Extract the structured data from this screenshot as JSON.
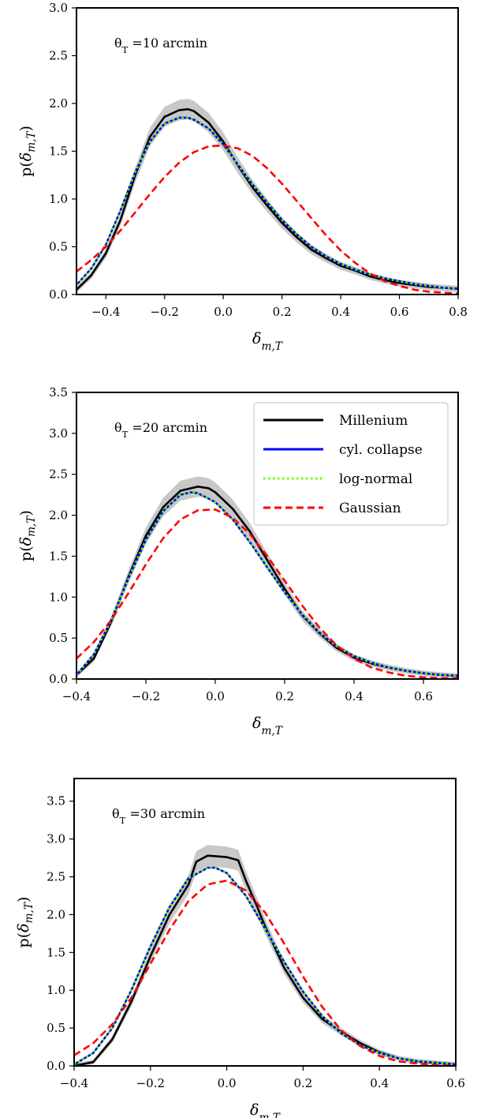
{
  "chart_data": [
    {
      "type": "line",
      "annotation": "θ_T =10 arcmin",
      "xlabel": "δ_m,T",
      "ylabel": "p(δ_m,T)",
      "xlim": [
        -0.5,
        0.8
      ],
      "ylim": [
        0,
        3.0
      ],
      "xticks": [
        -0.4,
        -0.2,
        0.0,
        0.2,
        0.4,
        0.6,
        0.8
      ],
      "xtick_labels": [
        "−0.4",
        "−0.2",
        "0.0",
        "0.2",
        "0.4",
        "0.6",
        "0.8"
      ],
      "yticks": [
        0.0,
        0.5,
        1.0,
        1.5,
        2.0,
        2.5,
        3.0
      ],
      "ytick_labels": [
        "0.0",
        "0.5",
        "1.0",
        "1.5",
        "2.0",
        "2.5",
        "3.0"
      ],
      "legend": false,
      "series": [
        {
          "name": "Millenium",
          "color": "#000000",
          "style": "solid",
          "x": [
            -0.5,
            -0.45,
            -0.4,
            -0.35,
            -0.3,
            -0.25,
            -0.2,
            -0.15,
            -0.12,
            -0.1,
            -0.05,
            0.0,
            0.05,
            0.1,
            0.15,
            0.2,
            0.25,
            0.3,
            0.35,
            0.4,
            0.45,
            0.5,
            0.55,
            0.6,
            0.65,
            0.7,
            0.75,
            0.8
          ],
          "y": [
            0.05,
            0.2,
            0.43,
            0.78,
            1.25,
            1.65,
            1.86,
            1.93,
            1.94,
            1.92,
            1.8,
            1.6,
            1.35,
            1.12,
            0.93,
            0.75,
            0.6,
            0.47,
            0.38,
            0.3,
            0.25,
            0.19,
            0.15,
            0.12,
            0.1,
            0.08,
            0.07,
            0.06
          ]
        },
        {
          "name": "cyl. collapse",
          "color": "#0000ff",
          "style": "solid",
          "x": [
            -0.5,
            -0.45,
            -0.4,
            -0.35,
            -0.3,
            -0.25,
            -0.2,
            -0.15,
            -0.12,
            -0.1,
            -0.05,
            0.0,
            0.05,
            0.1,
            0.15,
            0.2,
            0.25,
            0.3,
            0.35,
            0.4,
            0.45,
            0.5,
            0.55,
            0.6,
            0.65,
            0.7,
            0.75,
            0.8
          ],
          "y": [
            0.1,
            0.27,
            0.52,
            0.88,
            1.28,
            1.6,
            1.79,
            1.85,
            1.85,
            1.83,
            1.74,
            1.57,
            1.36,
            1.15,
            0.96,
            0.78,
            0.63,
            0.5,
            0.4,
            0.32,
            0.26,
            0.21,
            0.17,
            0.14,
            0.11,
            0.09,
            0.07,
            0.06
          ]
        },
        {
          "name": "log-normal",
          "color": "#66ff00",
          "style": "dotted",
          "x": [
            -0.5,
            -0.45,
            -0.4,
            -0.35,
            -0.3,
            -0.25,
            -0.2,
            -0.15,
            -0.12,
            -0.1,
            -0.05,
            0.0,
            0.05,
            0.1,
            0.15,
            0.2,
            0.25,
            0.3,
            0.35,
            0.4,
            0.45,
            0.5,
            0.55,
            0.6,
            0.65,
            0.7,
            0.75,
            0.8
          ],
          "y": [
            0.1,
            0.27,
            0.52,
            0.88,
            1.28,
            1.6,
            1.79,
            1.85,
            1.85,
            1.83,
            1.74,
            1.57,
            1.36,
            1.15,
            0.96,
            0.78,
            0.63,
            0.5,
            0.4,
            0.32,
            0.26,
            0.21,
            0.17,
            0.14,
            0.11,
            0.09,
            0.07,
            0.06
          ]
        },
        {
          "name": "Gaussian",
          "color": "#ff0000",
          "style": "dashed",
          "x": [
            -0.5,
            -0.45,
            -0.4,
            -0.35,
            -0.3,
            -0.25,
            -0.2,
            -0.15,
            -0.1,
            -0.05,
            0.0,
            0.05,
            0.1,
            0.15,
            0.2,
            0.25,
            0.3,
            0.35,
            0.4,
            0.45,
            0.5,
            0.55,
            0.6,
            0.65,
            0.7,
            0.75,
            0.8
          ],
          "y": [
            0.24,
            0.36,
            0.5,
            0.67,
            0.86,
            1.05,
            1.23,
            1.38,
            1.49,
            1.55,
            1.56,
            1.53,
            1.45,
            1.32,
            1.16,
            0.98,
            0.8,
            0.62,
            0.46,
            0.33,
            0.22,
            0.14,
            0.09,
            0.05,
            0.03,
            0.02,
            0.01
          ]
        }
      ]
    },
    {
      "type": "line",
      "annotation": "θ_T =20 arcmin",
      "xlabel": "δ_m,T",
      "ylabel": "p(δ_m,T)",
      "xlim": [
        -0.4,
        0.7
      ],
      "ylim": [
        0,
        3.5
      ],
      "xticks": [
        -0.4,
        -0.2,
        0.0,
        0.2,
        0.4,
        0.6
      ],
      "xtick_labels": [
        "−0.4",
        "−0.2",
        "0.0",
        "0.2",
        "0.4",
        "0.6"
      ],
      "yticks": [
        0.0,
        0.5,
        1.0,
        1.5,
        2.0,
        2.5,
        3.0,
        3.5
      ],
      "ytick_labels": [
        "0.0",
        "0.5",
        "1.0",
        "1.5",
        "2.0",
        "2.5",
        "3.0",
        "3.5"
      ],
      "legend": true,
      "legend_position": "top-right",
      "legend_entries": [
        "Millenium",
        "cyl. collapse",
        "log-normal",
        "Gaussian"
      ],
      "series": [
        {
          "name": "Millenium",
          "color": "#000000",
          "style": "solid",
          "x": [
            -0.4,
            -0.35,
            -0.3,
            -0.25,
            -0.2,
            -0.15,
            -0.1,
            -0.05,
            -0.02,
            0.0,
            0.05,
            0.1,
            0.15,
            0.2,
            0.25,
            0.3,
            0.35,
            0.4,
            0.45,
            0.5,
            0.55,
            0.6,
            0.65,
            0.7
          ],
          "y": [
            0.05,
            0.25,
            0.7,
            1.25,
            1.75,
            2.1,
            2.3,
            2.35,
            2.33,
            2.28,
            2.08,
            1.8,
            1.45,
            1.1,
            0.78,
            0.56,
            0.38,
            0.26,
            0.19,
            0.14,
            0.1,
            0.07,
            0.05,
            0.04
          ]
        },
        {
          "name": "cyl. collapse",
          "color": "#0000ff",
          "style": "solid",
          "x": [
            -0.4,
            -0.35,
            -0.3,
            -0.25,
            -0.2,
            -0.15,
            -0.1,
            -0.07,
            -0.05,
            0.0,
            0.05,
            0.1,
            0.15,
            0.2,
            0.25,
            0.3,
            0.35,
            0.4,
            0.45,
            0.5,
            0.55,
            0.6,
            0.65,
            0.7
          ],
          "y": [
            0.05,
            0.3,
            0.72,
            1.23,
            1.7,
            2.05,
            2.25,
            2.28,
            2.27,
            2.16,
            1.95,
            1.67,
            1.36,
            1.06,
            0.79,
            0.57,
            0.4,
            0.28,
            0.2,
            0.14,
            0.1,
            0.07,
            0.05,
            0.04
          ]
        },
        {
          "name": "log-normal",
          "color": "#66ff00",
          "style": "dotted",
          "x": [
            -0.4,
            -0.35,
            -0.3,
            -0.25,
            -0.2,
            -0.15,
            -0.1,
            -0.07,
            -0.05,
            0.0,
            0.05,
            0.1,
            0.15,
            0.2,
            0.25,
            0.3,
            0.35,
            0.4,
            0.45,
            0.5,
            0.55,
            0.6,
            0.65,
            0.7
          ],
          "y": [
            0.05,
            0.3,
            0.72,
            1.23,
            1.7,
            2.05,
            2.25,
            2.28,
            2.27,
            2.16,
            1.95,
            1.67,
            1.36,
            1.06,
            0.79,
            0.57,
            0.4,
            0.28,
            0.2,
            0.14,
            0.1,
            0.07,
            0.05,
            0.04
          ]
        },
        {
          "name": "Gaussian",
          "color": "#ff0000",
          "style": "dashed",
          "x": [
            -0.4,
            -0.35,
            -0.3,
            -0.25,
            -0.2,
            -0.15,
            -0.1,
            -0.05,
            0.0,
            0.05,
            0.1,
            0.15,
            0.2,
            0.25,
            0.3,
            0.35,
            0.4,
            0.45,
            0.5,
            0.55,
            0.6,
            0.65,
            0.7
          ],
          "y": [
            0.25,
            0.45,
            0.72,
            1.05,
            1.4,
            1.72,
            1.95,
            2.06,
            2.07,
            1.97,
            1.77,
            1.5,
            1.2,
            0.9,
            0.63,
            0.41,
            0.25,
            0.14,
            0.08,
            0.04,
            0.02,
            0.01,
            0.01
          ]
        }
      ]
    },
    {
      "type": "line",
      "annotation": "θ_T =30 arcmin",
      "xlabel": "δ_m,T",
      "ylabel": "p(δ_m,T)",
      "xlim": [
        -0.4,
        0.6
      ],
      "ylim": [
        0,
        3.8
      ],
      "xticks": [
        -0.4,
        -0.2,
        0.0,
        0.2,
        0.4,
        0.6
      ],
      "xtick_labels": [
        "−0.4",
        "−0.2",
        "0.0",
        "0.2",
        "0.4",
        "0.6"
      ],
      "yticks": [
        0.0,
        0.5,
        1.0,
        1.5,
        2.0,
        2.5,
        3.0,
        3.5
      ],
      "ytick_labels": [
        "0.0",
        "0.5",
        "1.0",
        "1.5",
        "2.0",
        "2.5",
        "3.0",
        "3.5"
      ],
      "legend": false,
      "series": [
        {
          "name": "Millenium",
          "color": "#000000",
          "style": "solid",
          "x": [
            -0.4,
            -0.35,
            -0.3,
            -0.25,
            -0.2,
            -0.15,
            -0.1,
            -0.08,
            -0.05,
            0.0,
            0.03,
            0.05,
            0.08,
            0.1,
            0.15,
            0.2,
            0.25,
            0.3,
            0.35,
            0.4,
            0.45,
            0.5,
            0.55,
            0.6
          ],
          "y": [
            0.0,
            0.05,
            0.35,
            0.85,
            1.45,
            2.0,
            2.4,
            2.7,
            2.78,
            2.76,
            2.72,
            2.45,
            2.1,
            1.85,
            1.3,
            0.9,
            0.62,
            0.45,
            0.3,
            0.18,
            0.1,
            0.06,
            0.04,
            0.02
          ]
        },
        {
          "name": "cyl. collapse",
          "color": "#0000ff",
          "style": "solid",
          "x": [
            -0.4,
            -0.35,
            -0.3,
            -0.25,
            -0.2,
            -0.15,
            -0.1,
            -0.05,
            -0.03,
            0.0,
            0.05,
            0.1,
            0.15,
            0.2,
            0.25,
            0.3,
            0.35,
            0.4,
            0.45,
            0.5,
            0.55,
            0.6
          ],
          "y": [
            0.02,
            0.17,
            0.5,
            1.0,
            1.58,
            2.1,
            2.48,
            2.62,
            2.62,
            2.55,
            2.25,
            1.82,
            1.38,
            0.98,
            0.66,
            0.43,
            0.27,
            0.17,
            0.1,
            0.06,
            0.04,
            0.02
          ]
        },
        {
          "name": "log-normal",
          "color": "#66ff00",
          "style": "dotted",
          "x": [
            -0.4,
            -0.35,
            -0.3,
            -0.25,
            -0.2,
            -0.15,
            -0.1,
            -0.05,
            -0.03,
            0.0,
            0.05,
            0.1,
            0.15,
            0.2,
            0.25,
            0.3,
            0.35,
            0.4,
            0.45,
            0.5,
            0.55,
            0.6
          ],
          "y": [
            0.02,
            0.17,
            0.5,
            1.0,
            1.58,
            2.1,
            2.48,
            2.62,
            2.62,
            2.55,
            2.25,
            1.82,
            1.38,
            0.98,
            0.66,
            0.43,
            0.27,
            0.17,
            0.1,
            0.06,
            0.04,
            0.02
          ]
        },
        {
          "name": "Gaussian",
          "color": "#ff0000",
          "style": "dashed",
          "x": [
            -0.4,
            -0.35,
            -0.3,
            -0.25,
            -0.2,
            -0.15,
            -0.1,
            -0.05,
            0.0,
            0.05,
            0.1,
            0.15,
            0.2,
            0.25,
            0.3,
            0.35,
            0.4,
            0.45,
            0.5,
            0.55,
            0.6
          ],
          "y": [
            0.14,
            0.3,
            0.55,
            0.9,
            1.35,
            1.8,
            2.18,
            2.4,
            2.45,
            2.32,
            2.03,
            1.62,
            1.18,
            0.78,
            0.47,
            0.26,
            0.13,
            0.06,
            0.03,
            0.01,
            0.0
          ]
        }
      ]
    }
  ]
}
